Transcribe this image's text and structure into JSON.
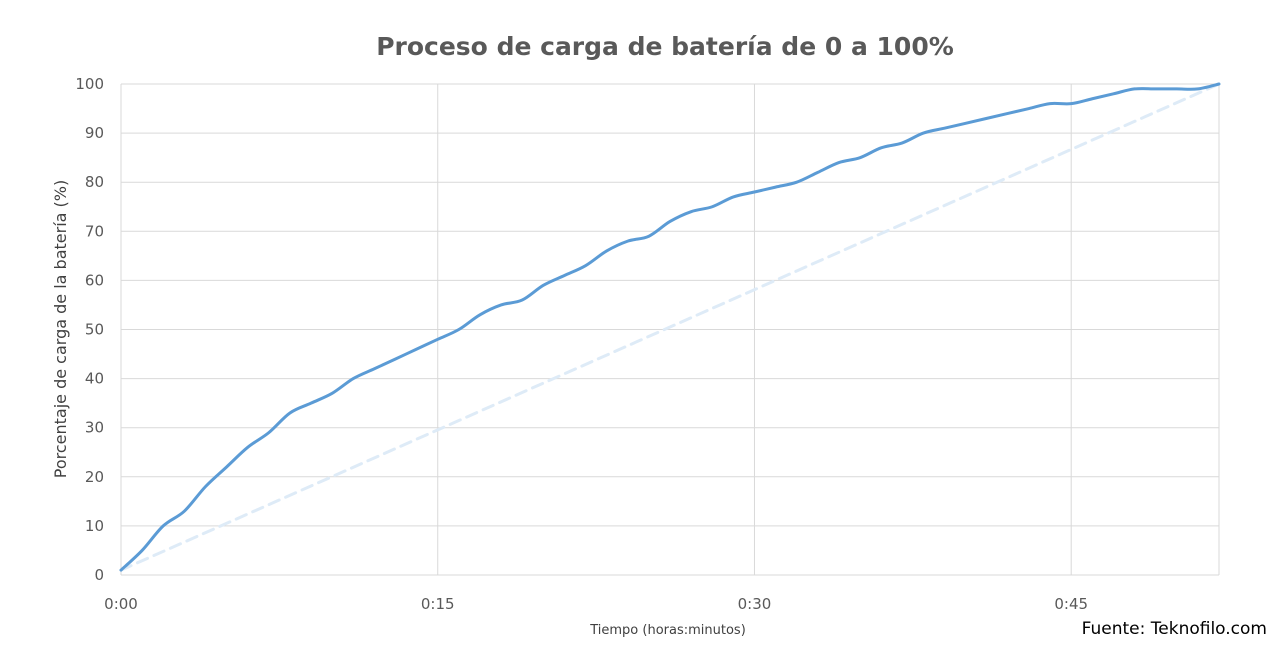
{
  "source_note": "Fuente: Teknofilo.com",
  "colors": {
    "series": "#5B9BD5",
    "reference": "#DEEBF7",
    "grid": "#D9D9D9",
    "text": "#595959"
  },
  "chart_data": {
    "type": "line",
    "title": "Proceso de carga de batería de 0 a 100%",
    "xlabel": "Tiempo (horas:minutos)",
    "ylabel": "Porcentaje de carga de la batería (%)",
    "xlim": [
      0,
      52
    ],
    "ylim": [
      0,
      100
    ],
    "x_ticks": [
      0,
      15,
      30,
      45
    ],
    "x_tick_labels": [
      "0:00",
      "0:15",
      "0:30",
      "0:45"
    ],
    "y_ticks": [
      0,
      10,
      20,
      30,
      40,
      50,
      60,
      70,
      80,
      90,
      100
    ],
    "grid": true,
    "legend": "none",
    "series": [
      {
        "style": "solid",
        "x": [
          0,
          1,
          2,
          3,
          4,
          5,
          6,
          7,
          8,
          9,
          10,
          11,
          12,
          13,
          14,
          15,
          16,
          17,
          18,
          19,
          20,
          21,
          22,
          23,
          24,
          25,
          26,
          27,
          28,
          29,
          30,
          31,
          32,
          33,
          34,
          35,
          36,
          37,
          38,
          39,
          40,
          41,
          42,
          43,
          44,
          45,
          46,
          47,
          48,
          49,
          50,
          51,
          52
        ],
        "values": [
          1,
          5,
          10,
          13,
          18,
          22,
          26,
          29,
          33,
          35,
          37,
          40,
          42,
          44,
          46,
          48,
          50,
          53,
          55,
          56,
          59,
          61,
          63,
          66,
          68,
          69,
          72,
          74,
          75,
          77,
          78,
          79,
          80,
          82,
          84,
          85,
          87,
          88,
          90,
          91,
          92,
          93,
          94,
          95,
          96,
          96,
          97,
          98,
          99,
          99,
          99,
          99,
          100
        ]
      },
      {
        "style": "dashed",
        "x": [
          0,
          52
        ],
        "values": [
          1,
          100
        ]
      }
    ]
  }
}
